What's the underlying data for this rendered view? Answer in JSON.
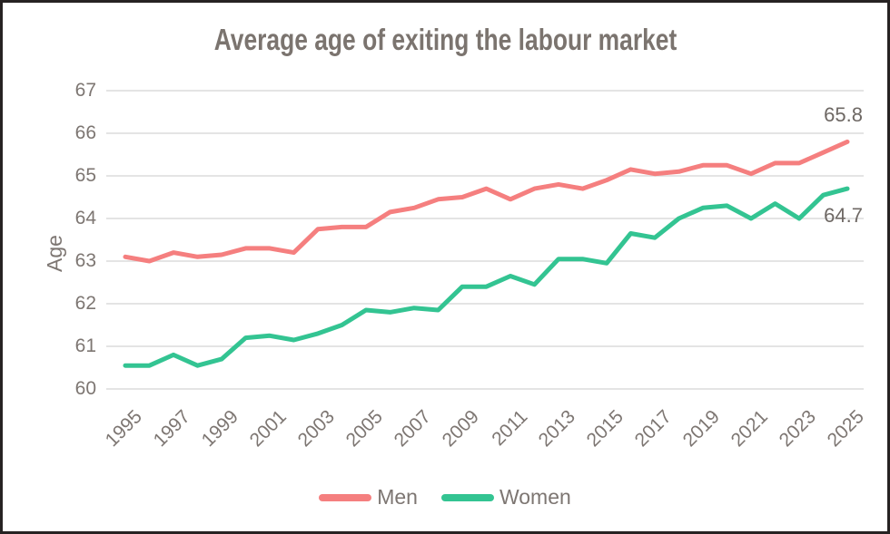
{
  "chart_data": {
    "type": "line",
    "title": "Average age of exiting the labour market",
    "ylabel": "Age",
    "xlabel": "",
    "ylim": [
      60,
      67
    ],
    "y_ticks": [
      67,
      66,
      65,
      64,
      63,
      62,
      61,
      60
    ],
    "x": [
      1995,
      1996,
      1997,
      1998,
      1999,
      2000,
      2001,
      2002,
      2003,
      2004,
      2005,
      2006,
      2007,
      2008,
      2009,
      2010,
      2011,
      2012,
      2013,
      2014,
      2015,
      2016,
      2017,
      2018,
      2019,
      2020,
      2021,
      2022,
      2023,
      2024,
      2025
    ],
    "x_tick_labels": [
      "1995",
      "1997",
      "1999",
      "2001",
      "2003",
      "2005",
      "2007",
      "2009",
      "2011",
      "2013",
      "2015",
      "2017",
      "2019",
      "2021",
      "2023",
      "2025"
    ],
    "grid": "horizontal",
    "legend_position": "bottom-center",
    "series": [
      {
        "name": "Men",
        "color": "#f57f7f",
        "values": [
          63.1,
          63.0,
          63.2,
          63.1,
          63.15,
          63.3,
          63.3,
          63.2,
          63.75,
          63.8,
          63.8,
          64.15,
          64.25,
          64.45,
          64.5,
          64.7,
          64.45,
          64.7,
          64.8,
          64.7,
          64.9,
          65.15,
          65.05,
          65.1,
          65.25,
          65.25,
          65.05,
          65.3,
          65.3,
          65.55,
          65.8
        ]
      },
      {
        "name": "Women",
        "color": "#33c492",
        "values": [
          60.55,
          60.55,
          60.8,
          60.55,
          60.7,
          61.2,
          61.25,
          61.15,
          61.3,
          61.5,
          61.85,
          61.8,
          61.9,
          61.85,
          62.4,
          62.4,
          62.65,
          62.45,
          63.05,
          63.05,
          62.95,
          63.65,
          63.55,
          64.0,
          64.25,
          64.3,
          64.0,
          64.35,
          64.0,
          64.55,
          64.7
        ]
      }
    ],
    "annotations": [
      {
        "series": "Men",
        "text": "65.8",
        "placement": "above-end"
      },
      {
        "series": "Women",
        "text": "64.7",
        "placement": "below-end"
      }
    ]
  },
  "colors": {
    "men": "#f57f7f",
    "women": "#33c492",
    "gridline": "#dcdcdc",
    "text": "#7d7672",
    "title": "#7b746f",
    "annotation": "#6e6864",
    "border": "#262222",
    "background": "#ffffff"
  }
}
